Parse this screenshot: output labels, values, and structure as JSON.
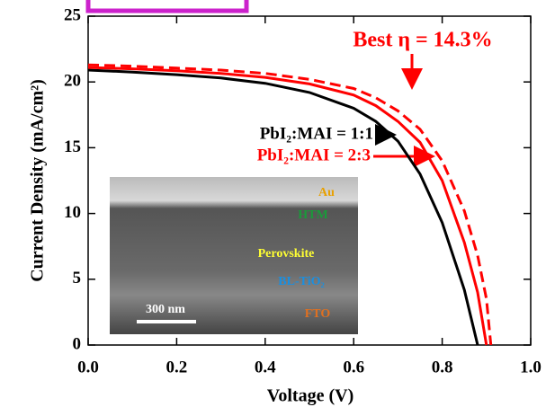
{
  "chart_data": {
    "type": "line",
    "x_label": "Voltage (V)",
    "y_label": "Current Density (mA/cm²)",
    "x": [
      0,
      0.1,
      0.2,
      0.3,
      0.4,
      0.5,
      0.6,
      0.65,
      0.7,
      0.75,
      0.8,
      0.85,
      0.88,
      0.9,
      0.91
    ],
    "series": [
      {
        "name": "PbI₂:MAI = 1:1",
        "color": "#000000",
        "line_style": "solid",
        "values": [
          20.9,
          20.75,
          20.55,
          20.3,
          19.9,
          19.2,
          18.0,
          17.0,
          15.5,
          13.0,
          9.3,
          4.2,
          0,
          null,
          null
        ]
      },
      {
        "name": "PbI₂:MAI = 2:3",
        "color": "#ff0000",
        "line_style": "solid",
        "values": [
          21.1,
          21.0,
          20.85,
          20.65,
          20.35,
          19.85,
          19.0,
          18.2,
          17.0,
          15.4,
          12.5,
          7.8,
          4.0,
          0,
          null
        ]
      },
      {
        "color": "#ff0000",
        "line_style": "dashed",
        "values": [
          21.3,
          21.2,
          21.05,
          20.9,
          20.65,
          20.2,
          19.5,
          18.8,
          17.8,
          16.4,
          14.0,
          10.2,
          6.8,
          3.5,
          0
        ]
      }
    ],
    "xlim": [
      0,
      1
    ],
    "ylim": [
      0,
      25
    ],
    "xticks": [
      {
        "value": 0,
        "label": "0.0"
      },
      0.2,
      0.4,
      0.6,
      0.8,
      {
        "value": 1,
        "label": "1.0"
      }
    ],
    "yticks": [
      0,
      5,
      10,
      15,
      20,
      25
    ],
    "annotation": "Best η = 14.3%",
    "inset_labels": {
      "au": "Au",
      "htm": "HTM",
      "perovskite": "Perovskite",
      "bl": "BL-TiO₂",
      "fto": "FTO",
      "scale": "300 nm"
    }
  }
}
